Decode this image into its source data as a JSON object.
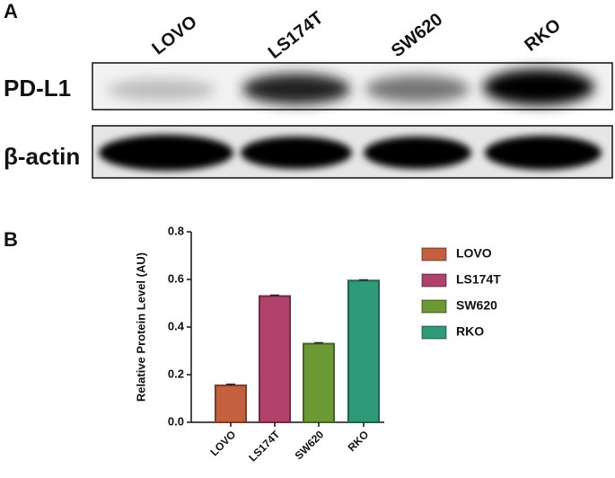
{
  "panel_a": {
    "label": "A",
    "lanes": [
      "LOVO",
      "LS174T",
      "SW620",
      "RKO"
    ],
    "rows": [
      "PD-L1",
      "β-actin"
    ]
  },
  "chart_data": {
    "type": "bar",
    "panel_label": "B",
    "y_label": "Relative Protein Level (AU)",
    "categories": [
      "LOVO",
      "LS174T",
      "SW620",
      "RKO"
    ],
    "values": [
      0.155,
      0.53,
      0.33,
      0.595
    ],
    "errors": [
      0.005,
      0.004,
      0.004,
      0.003
    ],
    "colors": [
      "#c4603e",
      "#b0426b",
      "#6b9a35",
      "#2f9a7a"
    ],
    "ylim": [
      0,
      0.8
    ],
    "yticks": [
      {
        "value": 0,
        "label": "0.0"
      },
      0.2,
      0.4,
      0.6,
      0.8
    ],
    "legend": "right"
  }
}
